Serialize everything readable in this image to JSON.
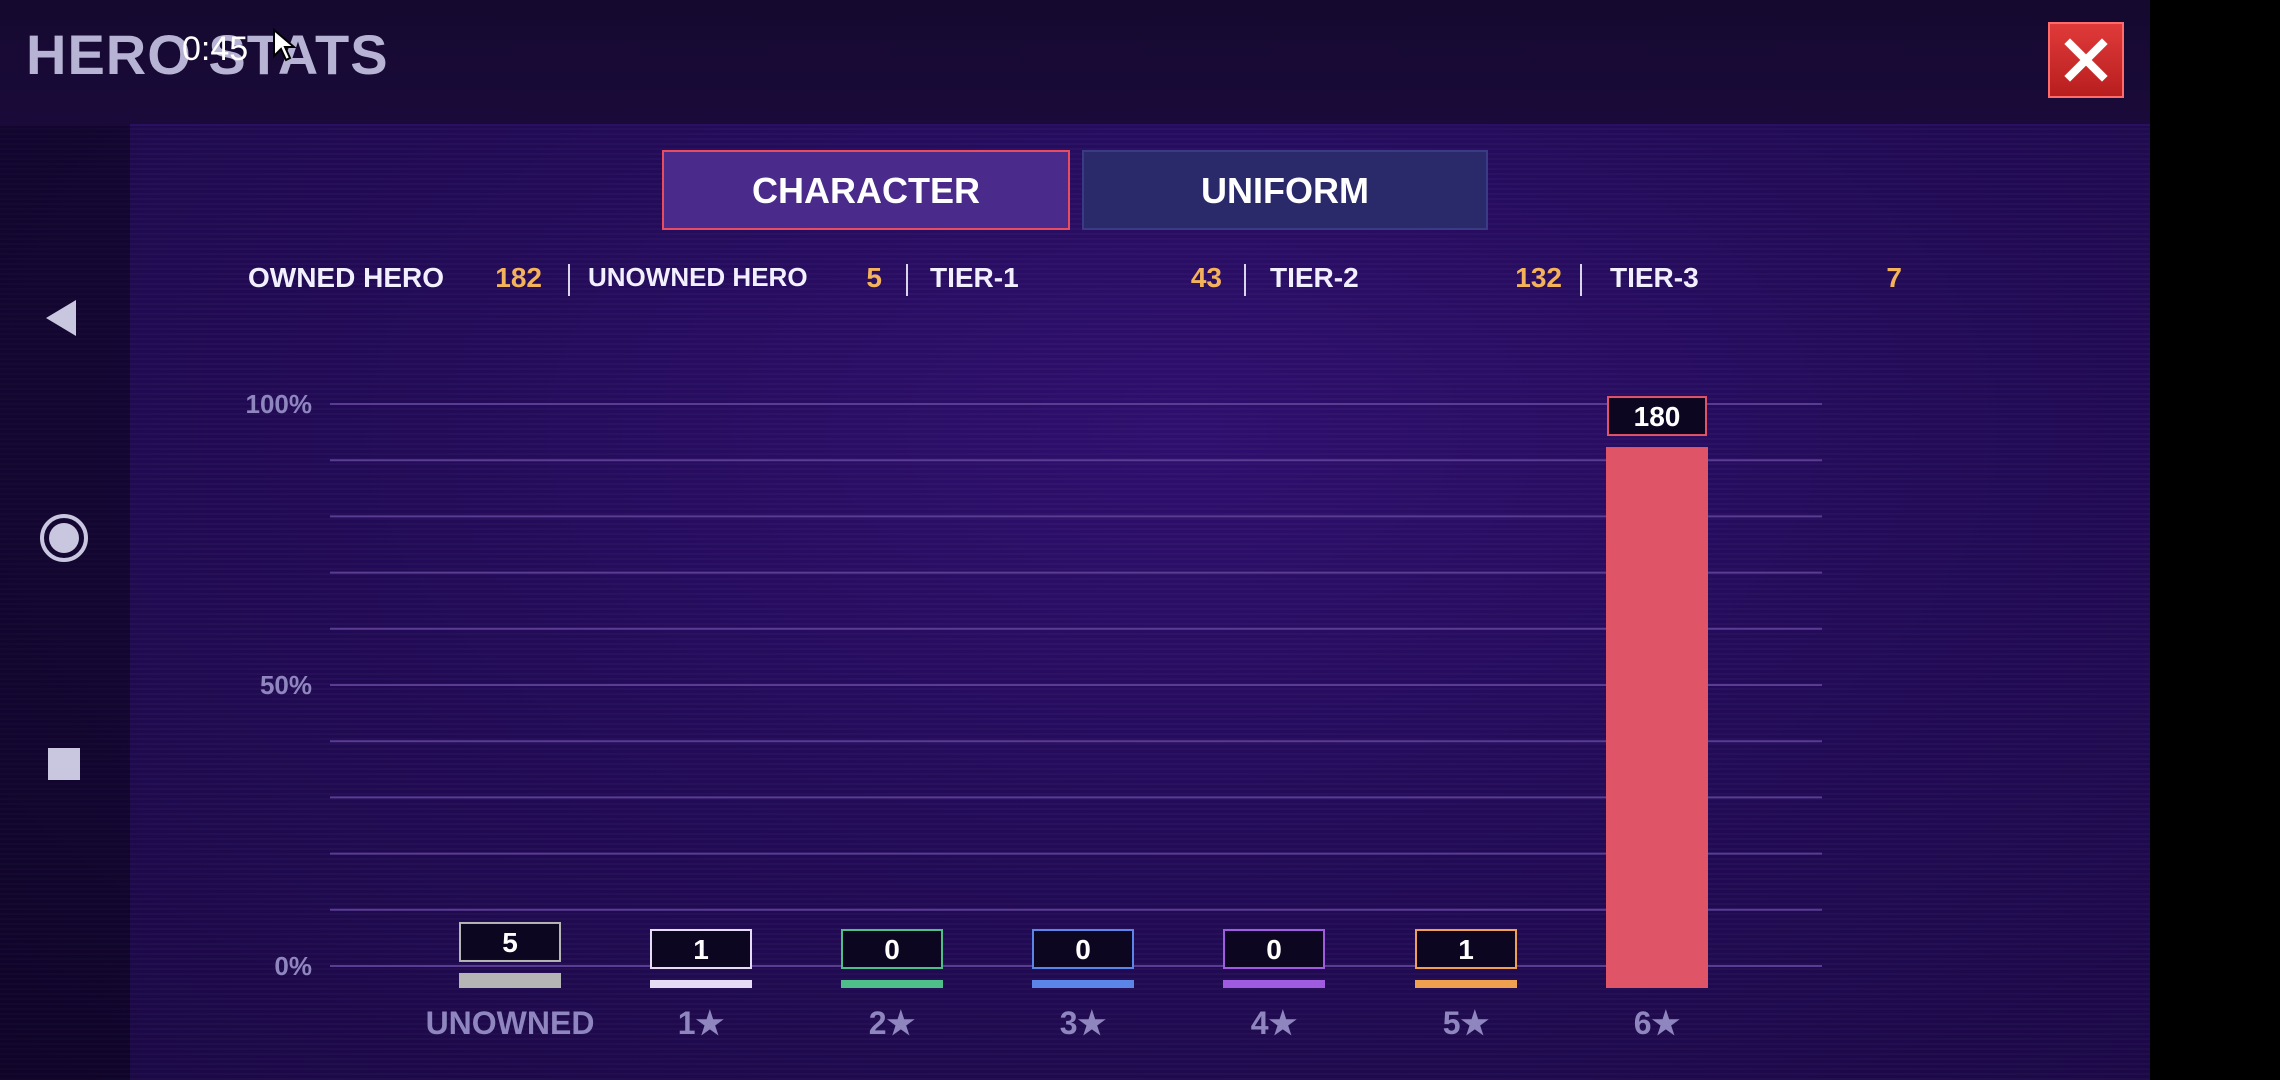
{
  "header": {
    "title": "HERO STATS",
    "status_time": "0:45"
  },
  "nav": {
    "back_icon": "back-triangle-icon",
    "home_icon": "home-circle-icon",
    "recents_icon": "recents-square-icon"
  },
  "tabs": [
    {
      "label": "CHARACTER",
      "selected": true
    },
    {
      "label": "UNIFORM",
      "selected": false
    }
  ],
  "summary": {
    "owned_label": "OWNED HERO",
    "owned_value": "182",
    "unowned_label": "UNOWNED HERO",
    "unowned_value": "5",
    "tier1_label": "TIER-1",
    "tier1_value": "43",
    "tier2_label": "TIER-2",
    "tier2_value": "132",
    "tier3_label": "TIER-3",
    "tier3_value": "7"
  },
  "colors": {
    "unowned": "#b5b5b5",
    "star1": "#e6dcf5",
    "star2": "#4fbf8a",
    "star3": "#5b86e8",
    "star4": "#a05ce0",
    "star5": "#f0a14f",
    "star6": "#e05468",
    "value_highlight": "#f4b35a"
  },
  "chart_data": {
    "type": "bar",
    "categories": [
      "UNOWNED",
      "1★",
      "2★",
      "3★",
      "4★",
      "5★",
      "6★"
    ],
    "values": [
      5,
      1,
      0,
      0,
      0,
      1,
      180
    ],
    "ytick_labels": [
      "100%",
      "50%",
      "0%"
    ],
    "ylim": [
      0,
      187
    ],
    "grid": true,
    "legend": "none"
  }
}
